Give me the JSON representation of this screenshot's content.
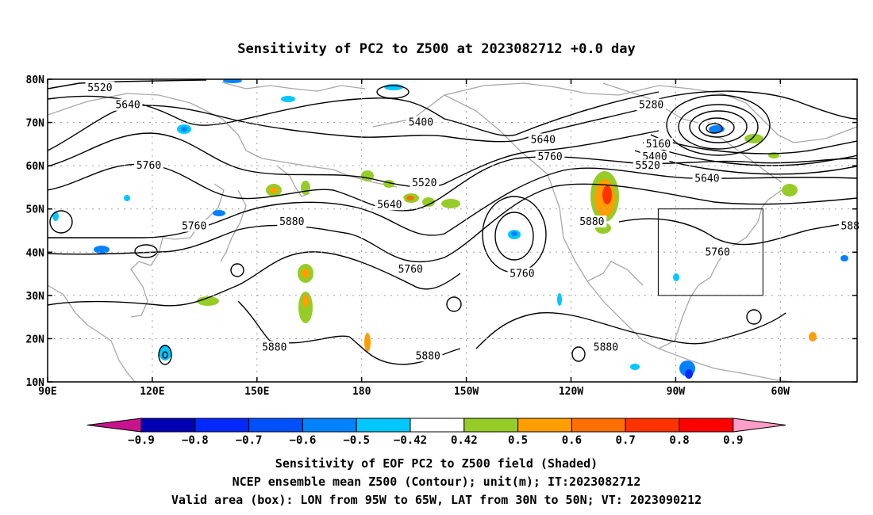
{
  "title": "Sensitivity of PC2 to Z500 at 2023082712 +0.0 day",
  "map": {
    "lat_labels": [
      "80N",
      "70N",
      "60N",
      "50N",
      "40N",
      "30N",
      "20N",
      "10N"
    ],
    "lat_values": [
      80,
      70,
      60,
      50,
      40,
      30,
      20,
      10
    ],
    "lon_labels": [
      "90E",
      "120E",
      "150E",
      "180",
      "150W",
      "120W",
      "90W",
      "60W"
    ],
    "lon_values": [
      90,
      120,
      150,
      180,
      210,
      240,
      270,
      300
    ],
    "lon_range": [
      90,
      322
    ],
    "lat_range": [
      10,
      80
    ],
    "contour_labels": [
      {
        "text": "5520",
        "lon": 105,
        "lat": 78
      },
      {
        "text": "5640",
        "lon": 113,
        "lat": 74
      },
      {
        "text": "5760",
        "lon": 119,
        "lat": 60
      },
      {
        "text": "5400",
        "lon": 197,
        "lat": 70
      },
      {
        "text": "5640",
        "lon": 232,
        "lat": 66
      },
      {
        "text": "5760",
        "lon": 234,
        "lat": 62
      },
      {
        "text": "5280",
        "lon": 263,
        "lat": 74
      },
      {
        "text": "5160",
        "lon": 265,
        "lat": 65
      },
      {
        "text": "5400",
        "lon": 264,
        "lat": 62
      },
      {
        "text": "5520",
        "lon": 262,
        "lat": 60
      },
      {
        "text": "5640",
        "lon": 279,
        "lat": 57
      },
      {
        "text": "5520",
        "lon": 198,
        "lat": 56
      },
      {
        "text": "5640",
        "lon": 188,
        "lat": 51
      },
      {
        "text": "5760",
        "lon": 132,
        "lat": 46
      },
      {
        "text": "5880",
        "lon": 160,
        "lat": 47
      },
      {
        "text": "5760",
        "lon": 194,
        "lat": 36
      },
      {
        "text": "5760",
        "lon": 226,
        "lat": 35
      },
      {
        "text": "5880",
        "lon": 246,
        "lat": 47
      },
      {
        "text": "5760",
        "lon": 282,
        "lat": 40
      },
      {
        "text": "588",
        "lon": 320,
        "lat": 46
      },
      {
        "text": "5880",
        "lon": 155,
        "lat": 18
      },
      {
        "text": "5880",
        "lon": 199,
        "lat": 16
      },
      {
        "text": "5880",
        "lon": 250,
        "lat": 18
      }
    ],
    "valid_box": {
      "lon": [
        265,
        295
      ],
      "lat": [
        30,
        50
      ]
    },
    "colors": {
      "contour": "#000000",
      "coast": "#a8a8a8",
      "grid": "#a0a0a0",
      "box": "#000000"
    }
  },
  "colorbar": {
    "ticks": [
      "−0.9",
      "−0.8",
      "−0.7",
      "−0.6",
      "−0.5",
      "−0.42",
      "0.42",
      "0.5",
      "0.6",
      "0.7",
      "0.8",
      "0.9"
    ],
    "colors": [
      "#0000b4",
      "#0028ff",
      "#0050ff",
      "#0082ff",
      "#00c8ff",
      "#ffffff",
      "#96cc28",
      "#ff9e00",
      "#ff6e00",
      "#ff3200",
      "#ff0000"
    ],
    "left_arrow_color": "#c8148c",
    "right_arrow_color": "#ff9ec8"
  },
  "captions": {
    "line1": "Sensitivity of EOF PC2 to Z500 field (Shaded)",
    "line2": "NCEP ensemble mean Z500 (Contour); unit(m); IT:2023082712",
    "line3": "Valid area (box): LON from 95W to 65W, LAT from 30N to 50N; VT: 2023090212"
  }
}
